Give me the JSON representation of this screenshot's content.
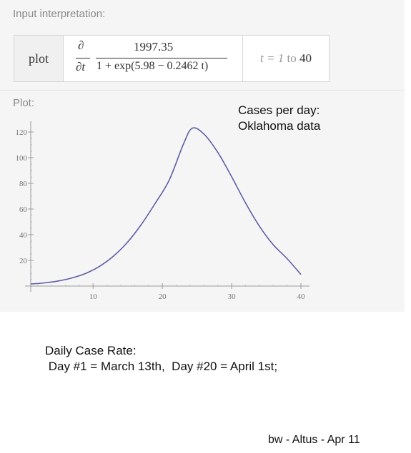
{
  "input_pod": {
    "title": "Input interpretation:",
    "command": "plot",
    "derivative_top": "∂",
    "derivative_bottom": "∂t",
    "numerator": "1997.35",
    "denominator": "1 + exp(5.98 − 0.2462 t)",
    "range_var": "t = 1",
    "range_to": "to",
    "range_end": "40"
  },
  "plot_pod": {
    "title": "Plot:"
  },
  "annotations": {
    "chart_note_line1": "Cases per day:",
    "chart_note_line2": "Oklahoma data",
    "caption_line1": "Daily Case Rate:",
    "caption_line2": " Day #1 = March 13th,  Day #20 = April 1st;",
    "signature": "bw - Altus - Apr 11"
  },
  "chart_data": {
    "type": "line",
    "title": "",
    "xlabel": "",
    "ylabel": "",
    "xlim": [
      1,
      40
    ],
    "ylim": [
      0,
      125
    ],
    "x_ticks": [
      10,
      20,
      30,
      40
    ],
    "y_ticks": [
      20,
      40,
      60,
      80,
      100,
      120
    ],
    "x": [
      1,
      3,
      5,
      7,
      9,
      11,
      13,
      15,
      17,
      19,
      21,
      23,
      24.3,
      26,
      28,
      30,
      32,
      34,
      36,
      38,
      40
    ],
    "series": [
      {
        "color": "#5e5ea6",
        "values": [
          1.6,
          2.5,
          4.0,
          6.4,
          10.0,
          15.6,
          23.6,
          34.4,
          48.3,
          64.7,
          82.6,
          110.0,
          122.9,
          118.4,
          104.1,
          85.1,
          64.8,
          46.7,
          32.2,
          21.4,
          9.0
        ]
      }
    ],
    "grid": false,
    "legend": "none"
  }
}
